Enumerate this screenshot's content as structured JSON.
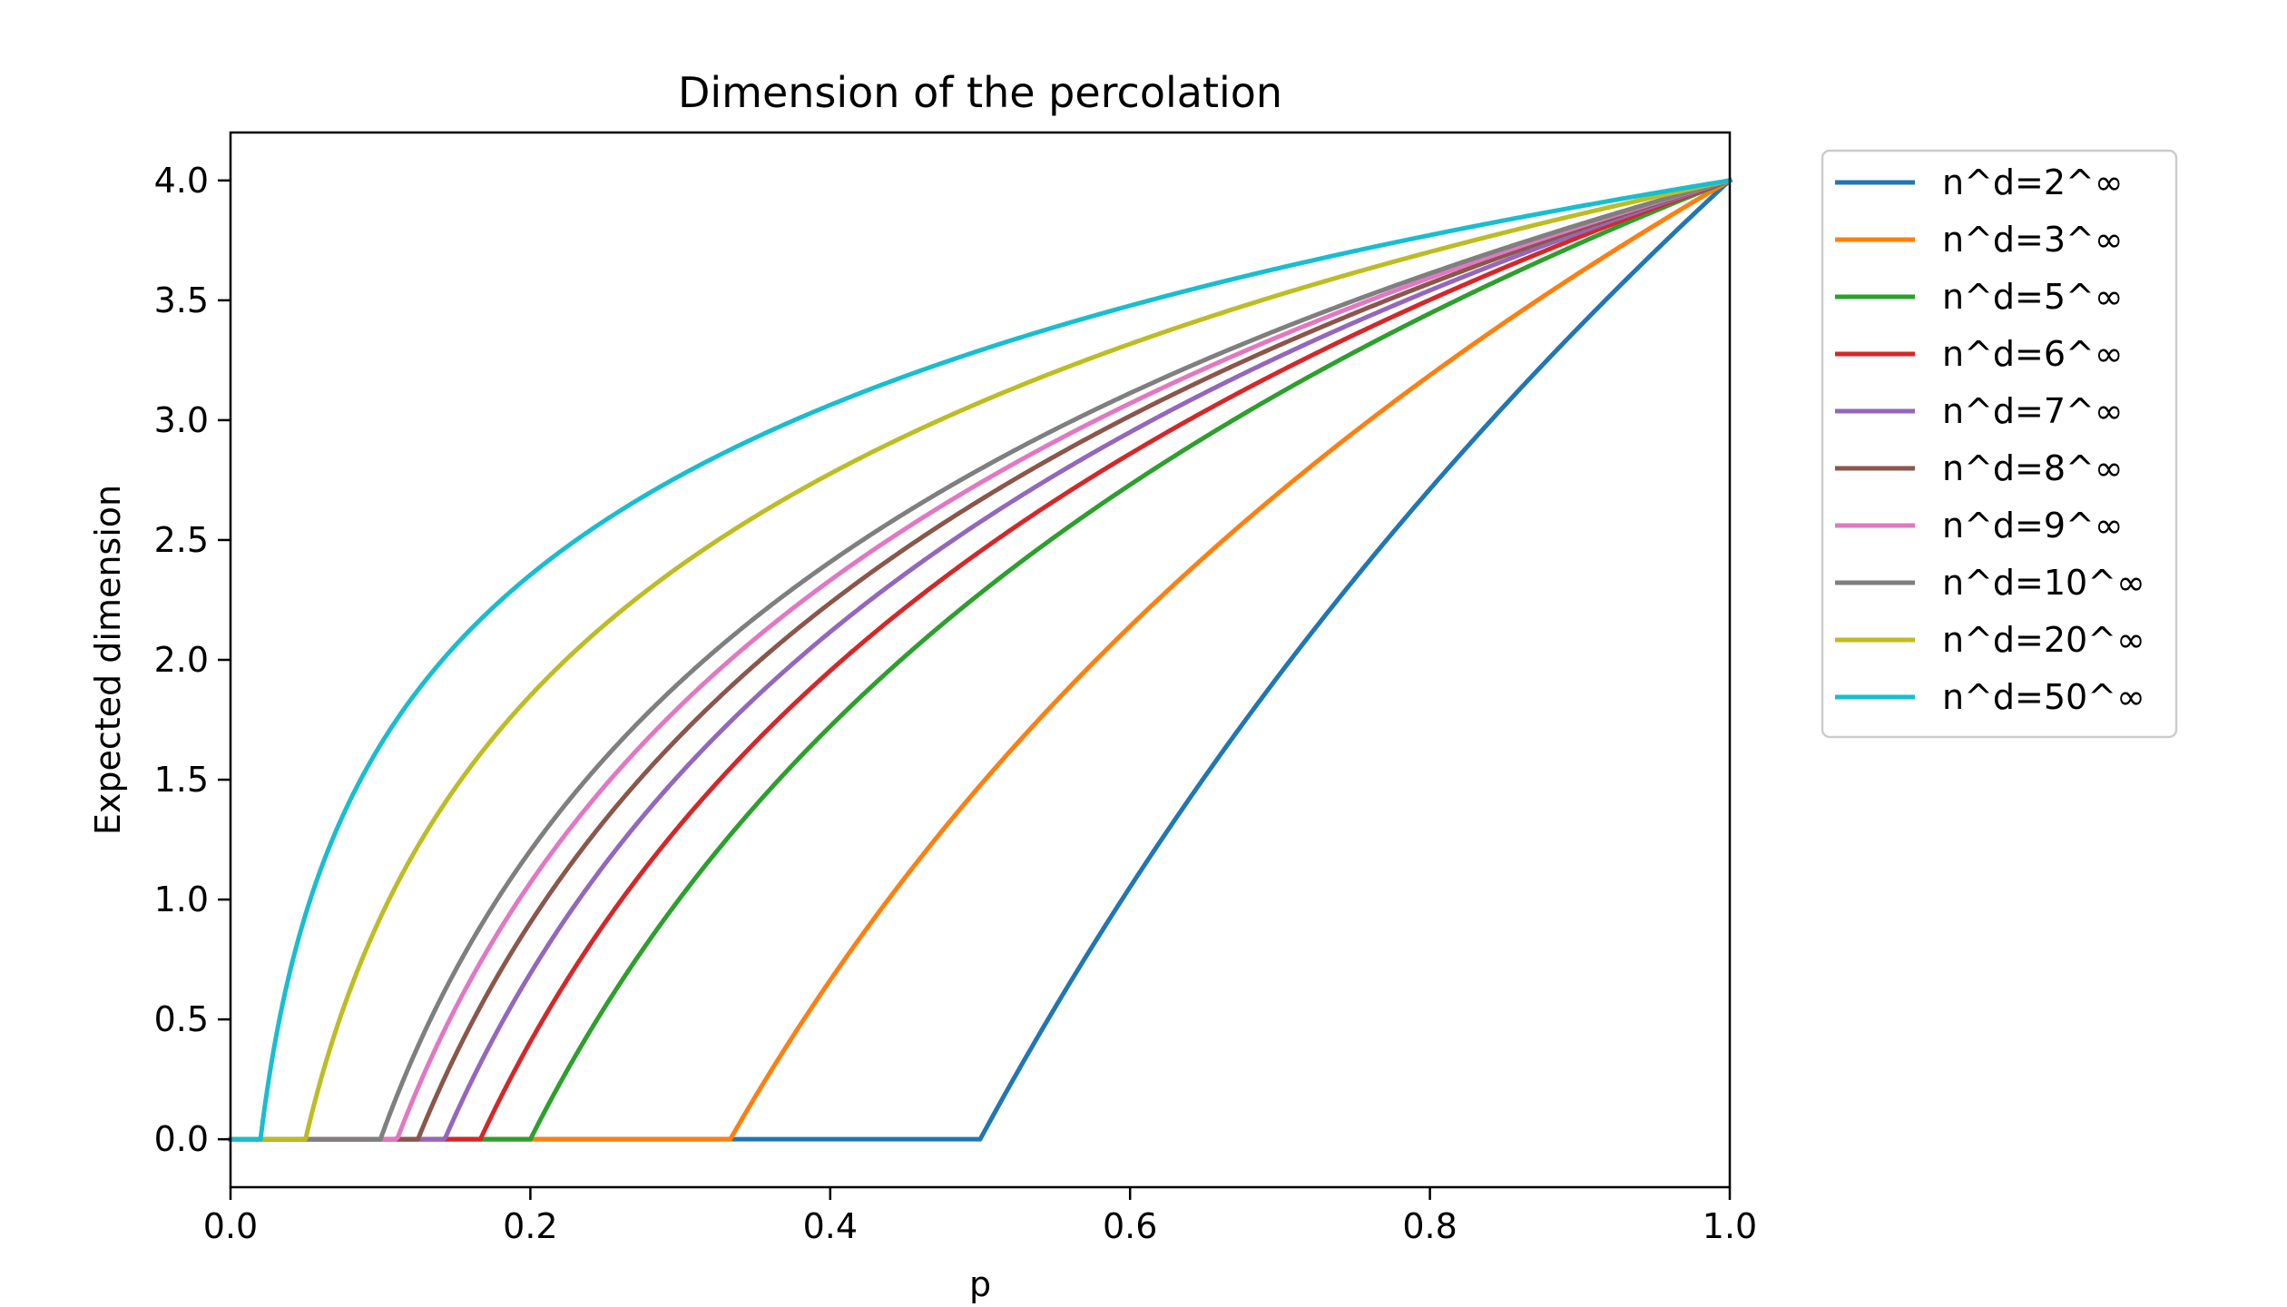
{
  "chart_data": {
    "type": "line",
    "title": "Dimension of the percolation",
    "xlabel": "p",
    "ylabel": "Expected dimension",
    "xlim": [
      0.0,
      1.0
    ],
    "ylim": [
      -0.2,
      4.2
    ],
    "xticks": [
      "0.0",
      "0.2",
      "0.4",
      "0.6",
      "0.8",
      "1.0"
    ],
    "yticks": [
      "0.0",
      "0.5",
      "1.0",
      "1.5",
      "2.0",
      "2.5",
      "3.0",
      "3.5",
      "4.0"
    ],
    "grid": false,
    "legend_position": "outside-top-right",
    "formula": "y = 4 * max(0, 1 + ln(p) / ln(n)); curve starts at p = 1/n",
    "series": [
      {
        "name": "n^d=2^∞",
        "n": 2,
        "color": "#1f77b4"
      },
      {
        "name": "n^d=3^∞",
        "n": 3,
        "color": "#ff7f0e"
      },
      {
        "name": "n^d=5^∞",
        "n": 5,
        "color": "#2ca02c"
      },
      {
        "name": "n^d=6^∞",
        "n": 6,
        "color": "#d62728"
      },
      {
        "name": "n^d=7^∞",
        "n": 7,
        "color": "#9467bd"
      },
      {
        "name": "n^d=8^∞",
        "n": 8,
        "color": "#8c564b"
      },
      {
        "name": "n^d=9^∞",
        "n": 9,
        "color": "#e377c2"
      },
      {
        "name": "n^d=10^∞",
        "n": 10,
        "color": "#7f7f7f"
      },
      {
        "name": "n^d=20^∞",
        "n": 20,
        "color": "#bcbd22"
      },
      {
        "name": "n^d=50^∞",
        "n": 50,
        "color": "#17becf"
      }
    ]
  }
}
